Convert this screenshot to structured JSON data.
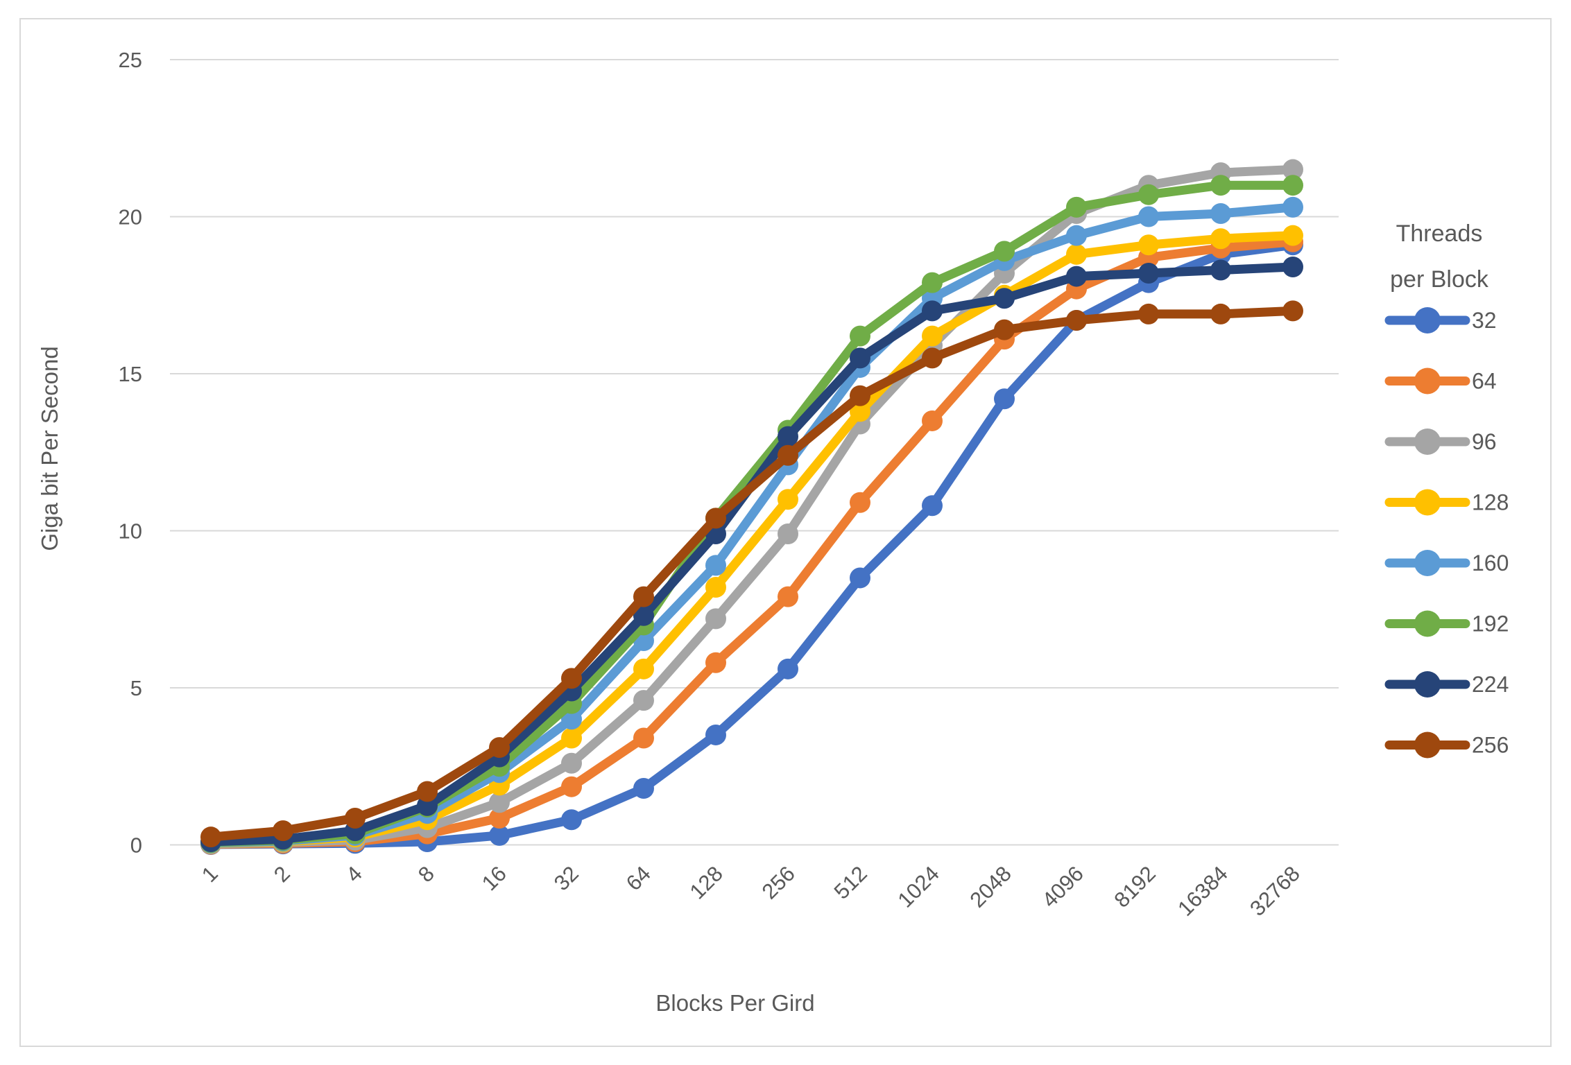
{
  "chart_data": {
    "type": "line",
    "title": "",
    "xlabel": "Blocks Per Gird",
    "ylabel": "Giga bit Per Second",
    "legend_title_line1": "Threads",
    "legend_title_line2": "per Block",
    "legend_position": "right",
    "grid": true,
    "ylim": [
      0,
      25
    ],
    "yticks": [
      0,
      5,
      10,
      15,
      20,
      25
    ],
    "categories": [
      "1",
      "2",
      "4",
      "8",
      "16",
      "32",
      "64",
      "128",
      "256",
      "512",
      "1024",
      "2048",
      "4096",
      "8192",
      "16384",
      "32768"
    ],
    "series": [
      {
        "name": "32",
        "color": "#4472C4",
        "values": [
          0.01,
          0.03,
          0.05,
          0.1,
          0.3,
          0.8,
          1.8,
          3.5,
          5.6,
          8.5,
          10.8,
          14.2,
          16.7,
          17.9,
          18.8,
          19.1
        ]
      },
      {
        "name": "64",
        "color": "#ED7D31",
        "values": [
          0.02,
          0.05,
          0.1,
          0.35,
          0.85,
          1.85,
          3.4,
          5.8,
          7.9,
          10.9,
          13.5,
          16.1,
          17.7,
          18.7,
          19.0,
          19.2
        ]
      },
      {
        "name": "96",
        "color": "#A5A5A5",
        "values": [
          0.03,
          0.08,
          0.15,
          0.55,
          1.35,
          2.6,
          4.6,
          7.2,
          9.9,
          13.4,
          15.9,
          18.2,
          20.1,
          21.0,
          21.4,
          21.5
        ]
      },
      {
        "name": "128",
        "color": "#FFC000",
        "values": [
          0.05,
          0.1,
          0.25,
          0.8,
          1.9,
          3.4,
          5.6,
          8.2,
          11.0,
          13.8,
          16.2,
          17.5,
          18.8,
          19.1,
          19.3,
          19.4
        ]
      },
      {
        "name": "160",
        "color": "#5B9BD5",
        "values": [
          0.06,
          0.12,
          0.3,
          1.0,
          2.3,
          4.0,
          6.5,
          8.9,
          12.1,
          15.2,
          17.4,
          18.6,
          19.4,
          20.0,
          20.1,
          20.3
        ]
      },
      {
        "name": "192",
        "color": "#70AD47",
        "values": [
          0.08,
          0.15,
          0.35,
          1.2,
          2.5,
          4.5,
          7.0,
          10.4,
          13.2,
          16.2,
          17.9,
          18.9,
          20.3,
          20.7,
          21.0,
          21.0
        ]
      },
      {
        "name": "224",
        "color": "#264478",
        "values": [
          0.1,
          0.18,
          0.45,
          1.25,
          2.8,
          4.9,
          7.3,
          9.9,
          13.0,
          15.5,
          17.0,
          17.4,
          18.1,
          18.2,
          18.3,
          18.4
        ]
      },
      {
        "name": "256",
        "color": "#9E480E",
        "values": [
          0.25,
          0.45,
          0.85,
          1.7,
          3.1,
          5.3,
          7.9,
          10.4,
          12.4,
          14.3,
          15.5,
          16.4,
          16.7,
          16.9,
          16.9,
          17.0
        ]
      }
    ]
  },
  "colors": {
    "axis_text": "#595959",
    "gridline": "#d9d9d9",
    "frame_border": "#d9d9d9",
    "background": "#ffffff"
  }
}
